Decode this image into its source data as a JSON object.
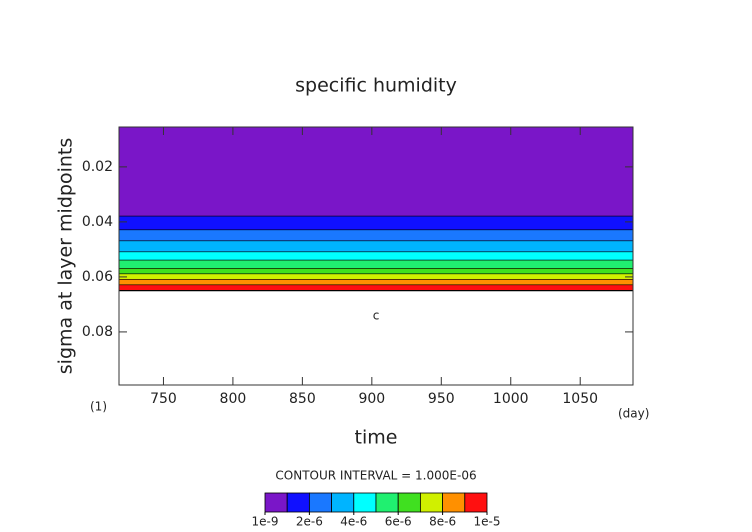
{
  "chart_data": {
    "type": "contour",
    "title": "specific humidity",
    "x_label": "time",
    "y_label": "sigma at layer midpoints",
    "x_unit": "(day)",
    "corner_label": "(1)",
    "annotation": "c",
    "contour_interval_label": "CONTOUR INTERVAL = 1.000E-06",
    "xlim": [
      718,
      1088
    ],
    "xticks": [
      750,
      800,
      850,
      900,
      950,
      1000,
      1050
    ],
    "ylim": [
      0.0055,
      0.0993
    ],
    "y_inverted": true,
    "yticks": [
      0.02,
      0.04,
      0.06,
      0.08
    ],
    "levels": [
      1e-09,
      1e-06,
      2e-06,
      3e-06,
      4e-06,
      5e-06,
      6e-06,
      7e-06,
      8e-06,
      9e-06,
      1e-05
    ],
    "level_ticks": [
      {
        "value": 1e-09,
        "label": "1e-9"
      },
      {
        "value": 2e-06,
        "label": "2e-6"
      },
      {
        "value": 4e-06,
        "label": "4e-6"
      },
      {
        "value": 6e-06,
        "label": "6e-6"
      },
      {
        "value": 8e-06,
        "label": "8e-6"
      },
      {
        "value": 1e-05,
        "label": "1e-5"
      }
    ],
    "bands": [
      {
        "color": "#7a16c8",
        "top": 0.0055,
        "bottom": 0.038
      },
      {
        "color": "#1010ff",
        "top": 0.038,
        "bottom": 0.043
      },
      {
        "color": "#1a78ff",
        "top": 0.043,
        "bottom": 0.047
      },
      {
        "color": "#00b4ff",
        "top": 0.047,
        "bottom": 0.051
      },
      {
        "color": "#00ffff",
        "top": 0.051,
        "bottom": 0.054
      },
      {
        "color": "#20f070",
        "top": 0.054,
        "bottom": 0.057
      },
      {
        "color": "#40e020",
        "top": 0.057,
        "bottom": 0.059
      },
      {
        "color": "#d0f000",
        "top": 0.059,
        "bottom": 0.061
      },
      {
        "color": "#ff9000",
        "top": 0.061,
        "bottom": 0.063
      },
      {
        "color": "#ff1010",
        "top": 0.063,
        "bottom": 0.065
      }
    ],
    "last_color": "#ffa0a0"
  }
}
